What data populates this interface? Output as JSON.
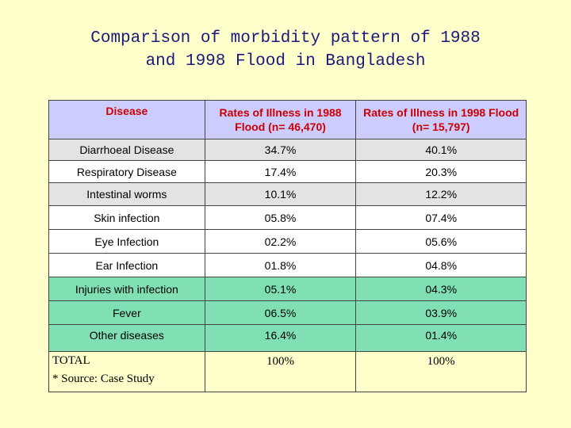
{
  "title": {
    "line1": "Comparison of morbidity pattern of 1988",
    "line2": "and 1998 Flood in Bangladesh"
  },
  "table": {
    "headers": [
      "Disease",
      "Rates of Illness in 1988 Flood (n= 46,470)",
      "Rates of Illness in 1998 Flood (n= 15,797)"
    ],
    "rows": [
      {
        "disease": "Diarrhoeal Disease",
        "rate_1988": "34.7%",
        "rate_1998": "40.1%"
      },
      {
        "disease": "Respiratory Disease",
        "rate_1988": "17.4%",
        "rate_1998": "20.3%"
      },
      {
        "disease": "Intestinal worms",
        "rate_1988": "10.1%",
        "rate_1998": "12.2%"
      },
      {
        "disease": "Skin infection",
        "rate_1988": "05.8%",
        "rate_1998": "07.4%"
      },
      {
        "disease": "Eye Infection",
        "rate_1988": "02.2%",
        "rate_1998": "05.6%"
      },
      {
        "disease": "Ear Infection",
        "rate_1988": "01.8%",
        "rate_1998": "04.8%"
      },
      {
        "disease": "Injuries with infection",
        "rate_1988": "05.1%",
        "rate_1998": "04.3%"
      },
      {
        "disease": "Fever",
        "rate_1988": "06.5%",
        "rate_1998": "03.9%"
      },
      {
        "disease": "Other diseases",
        "rate_1988": "16.4%",
        "rate_1998": "01.4%"
      }
    ],
    "total": {
      "label": "TOTAL",
      "source": "* Source: Case Study",
      "rate_1988": "100%",
      "rate_1998": "100%"
    }
  },
  "colors": {
    "background": "#ffffcc",
    "header_bg": "#ccccff",
    "header_text": "#cc0000",
    "row_white": "#ffffff",
    "row_gray": "#e3e3e3",
    "row_green": "#80e0b4",
    "title_text": "#1a1a7a"
  }
}
